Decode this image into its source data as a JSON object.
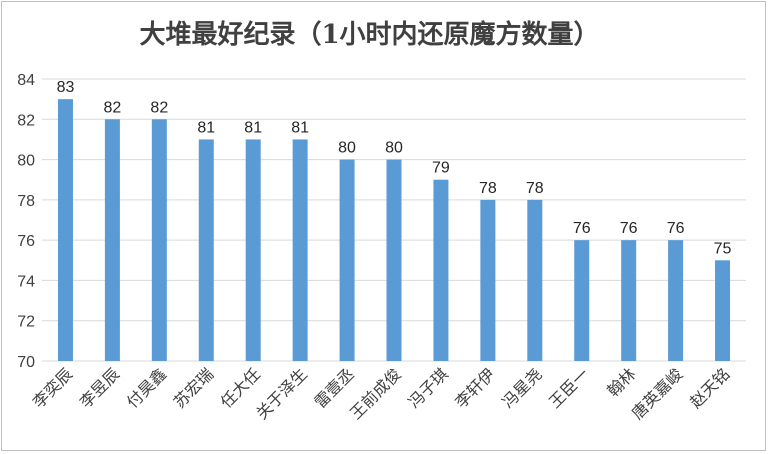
{
  "chart_data": {
    "type": "bar",
    "title": "大堆最好纪录（1小时内还原魔方数量）",
    "xlabel": "",
    "ylabel": "",
    "categories": [
      "李奕辰",
      "李昱辰",
      "付昊鑫",
      "苏宏瑞",
      "任大任",
      "关于泽生",
      "雷壹丞",
      "王前成俊",
      "冯子琪",
      "李轩伊",
      "冯星尧",
      "王臣一",
      "翰林",
      "唐英嘉峻",
      "赵天铭"
    ],
    "values": [
      83,
      82,
      82,
      81,
      81,
      81,
      80,
      80,
      79,
      78,
      78,
      76,
      76,
      76,
      75
    ],
    "ylim": [
      70,
      84
    ],
    "yticks": [
      70,
      72,
      74,
      76,
      78,
      80,
      82,
      84
    ],
    "grid": true,
    "legend": "none",
    "data_labels": true,
    "colors": {
      "bar": "#5B9BD5",
      "grid": "#d9d9d9",
      "axis": "#d9d9d9"
    }
  }
}
